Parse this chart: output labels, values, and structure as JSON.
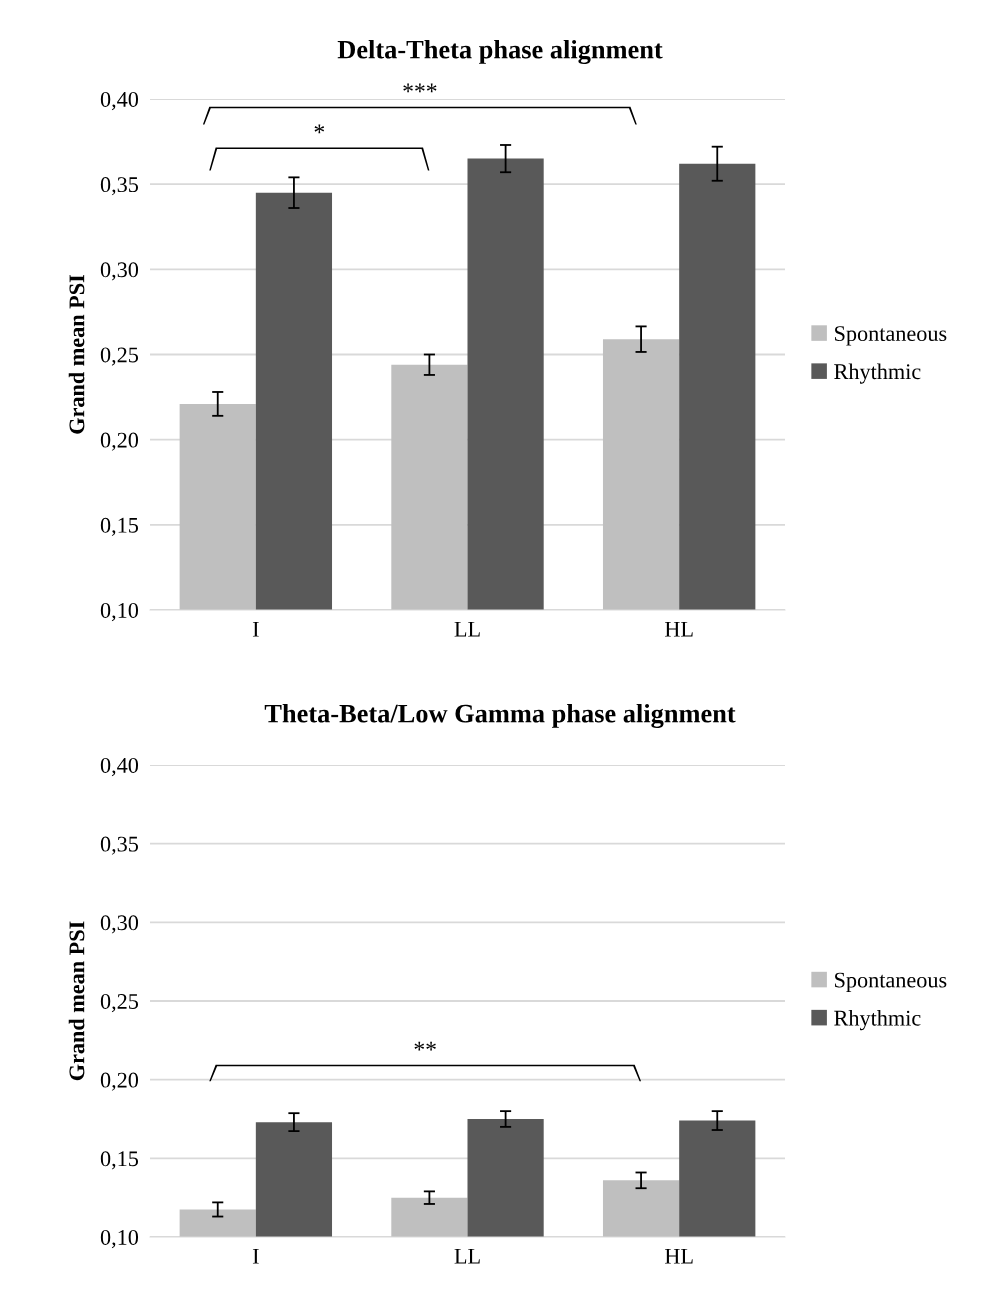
{
  "chart_data": [
    {
      "type": "bar",
      "title": "Delta-Theta phase alignment",
      "ylabel": "Grand mean PSI",
      "categories": [
        "I",
        "LL",
        "HL"
      ],
      "series": [
        {
          "name": "Spontaneous",
          "color": "#bfbfbf",
          "values": [
            0.221,
            0.244,
            0.259
          ],
          "errors": [
            0.007,
            0.006,
            0.0075
          ]
        },
        {
          "name": "Rhythmic",
          "color": "#595959",
          "values": [
            0.345,
            0.365,
            0.362
          ],
          "errors": [
            0.009,
            0.008,
            0.01
          ]
        }
      ],
      "ylim": [
        0.1,
        0.4
      ],
      "yticks": [
        {
          "value": 0.1,
          "label": "0,10"
        },
        {
          "value": 0.15,
          "label": "0,15"
        },
        {
          "value": 0.2,
          "label": "0,20"
        },
        {
          "value": 0.25,
          "label": "0,25"
        },
        {
          "value": 0.3,
          "label": "0,30"
        },
        {
          "value": 0.35,
          "label": "0,35"
        },
        {
          "value": 0.4,
          "label": "0,40"
        }
      ],
      "annotations": [
        "***",
        "*"
      ],
      "grid": "y",
      "legend": "right"
    },
    {
      "type": "bar",
      "title": "Theta-Beta/Low Gamma phase alignment",
      "ylabel": "Grand mean PSI",
      "categories": [
        "I",
        "LL",
        "HL"
      ],
      "series": [
        {
          "name": "Spontaneous",
          "color": "#bfbfbf",
          "values": [
            0.1175,
            0.125,
            0.136
          ],
          "errors": [
            0.0045,
            0.004,
            0.005
          ]
        },
        {
          "name": "Rhythmic",
          "color": "#595959",
          "values": [
            0.173,
            0.175,
            0.174
          ],
          "errors": [
            0.0057,
            0.005,
            0.006
          ]
        }
      ],
      "ylim": [
        0.1,
        0.4
      ],
      "yticks": [
        {
          "value": 0.1,
          "label": "0,10"
        },
        {
          "value": 0.15,
          "label": "0,15"
        },
        {
          "value": 0.2,
          "label": "0,20"
        },
        {
          "value": 0.25,
          "label": "0,25"
        },
        {
          "value": 0.3,
          "label": "0,30"
        },
        {
          "value": 0.35,
          "label": "0,35"
        },
        {
          "value": 0.4,
          "label": "0,40"
        }
      ],
      "annotations": [
        "**"
      ],
      "grid": "y",
      "legend": "right"
    }
  ]
}
